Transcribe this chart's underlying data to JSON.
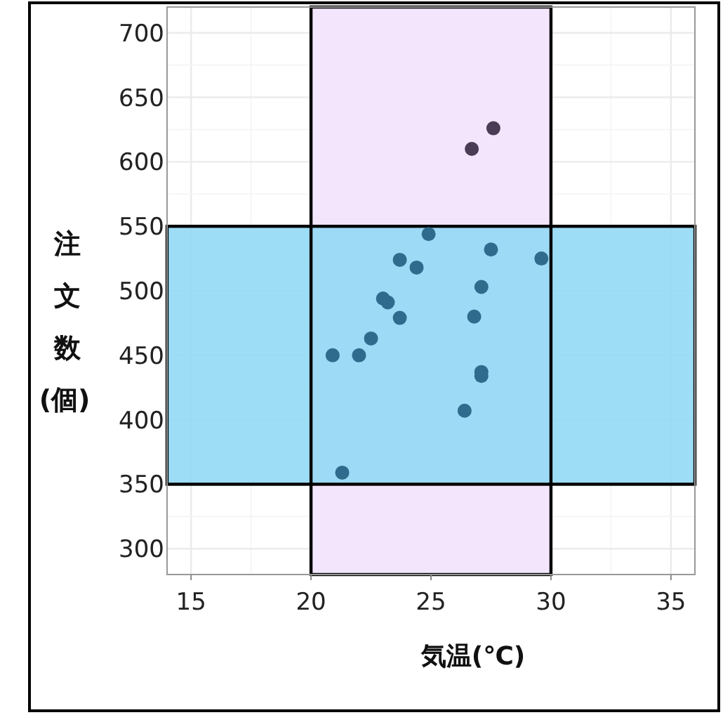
{
  "chart_data": {
    "type": "scatter",
    "xlabel": "気温(℃)",
    "ylabel": "注文数(個)",
    "xlim": [
      14,
      36
    ],
    "ylim": [
      280,
      720
    ],
    "xticks": [
      15,
      20,
      25,
      30,
      35
    ],
    "yticks": [
      300,
      350,
      400,
      450,
      500,
      550,
      600,
      650,
      700
    ],
    "grid": true,
    "marker": "circle",
    "bands": [
      {
        "axis": "x",
        "from": 20,
        "to": 30,
        "color": "#f3e6fc"
      },
      {
        "axis": "y",
        "from": 350,
        "to": 550,
        "color": "#8fd8f5"
      }
    ],
    "series": [
      {
        "x": [
          27.6,
          26.7,
          24.9,
          27.5,
          29.6,
          23.7,
          24.4,
          27.1,
          23.0,
          23.2,
          23.7,
          26.8,
          22.5,
          20.9,
          22.0,
          27.1,
          27.1,
          26.4,
          21.3
        ],
        "values": [
          626,
          610,
          544,
          532,
          525,
          524,
          518,
          503,
          494,
          491,
          479,
          480,
          463,
          450,
          450,
          437,
          434,
          407,
          359
        ],
        "colors": [
          "#4b3c55",
          "#4b3c55",
          "#2e6b8c",
          "#2e6b8c",
          "#2e6b8c",
          "#2e6b8c",
          "#2e6b8c",
          "#2e6b8c",
          "#2e6b8c",
          "#2e6b8c",
          "#2e6b8c",
          "#2e6b8c",
          "#2e6b8c",
          "#2e6b8c",
          "#2e6b8c",
          "#2e6b8c",
          "#2e6b8c",
          "#2e6b8c",
          "#2e6b8c"
        ]
      }
    ]
  }
}
